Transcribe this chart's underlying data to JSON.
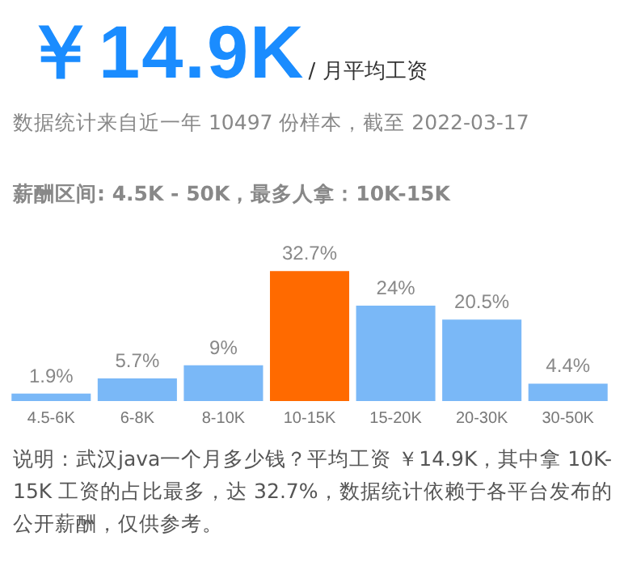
{
  "chart_data": {
    "type": "bar",
    "title": "￥14.9K",
    "subtitle": "/ 月平均工资",
    "annotations": [
      "数据统计来自近一年 10497 份样本，截至 2022-03-17",
      "薪酬区间: 4.5K - 50K，最多人拿：10K-15K",
      "说明：武汉java一个月多少钱？平均工资 ￥14.9K，其中拿 10K-15K 工资的占比最多，达 32.7%，数据统计依赖于各平台发布的公开薪酬，仅供参考。"
    ],
    "categories": [
      "4.5-6K",
      "6-8K",
      "8-10K",
      "10-15K",
      "15-20K",
      "20-30K",
      "30-50K"
    ],
    "values": [
      1.9,
      5.7,
      9,
      32.7,
      24,
      20.5,
      4.4
    ],
    "colors": [
      "#7ab8f7",
      "#7ab8f7",
      "#7ab8f7",
      "#ff6a00",
      "#7ab8f7",
      "#7ab8f7",
      "#7ab8f7"
    ],
    "value_labels": [
      "1.9%",
      "5.7%",
      "9%",
      "32.7%",
      "24%",
      "20.5%",
      "4.4%"
    ]
  }
}
